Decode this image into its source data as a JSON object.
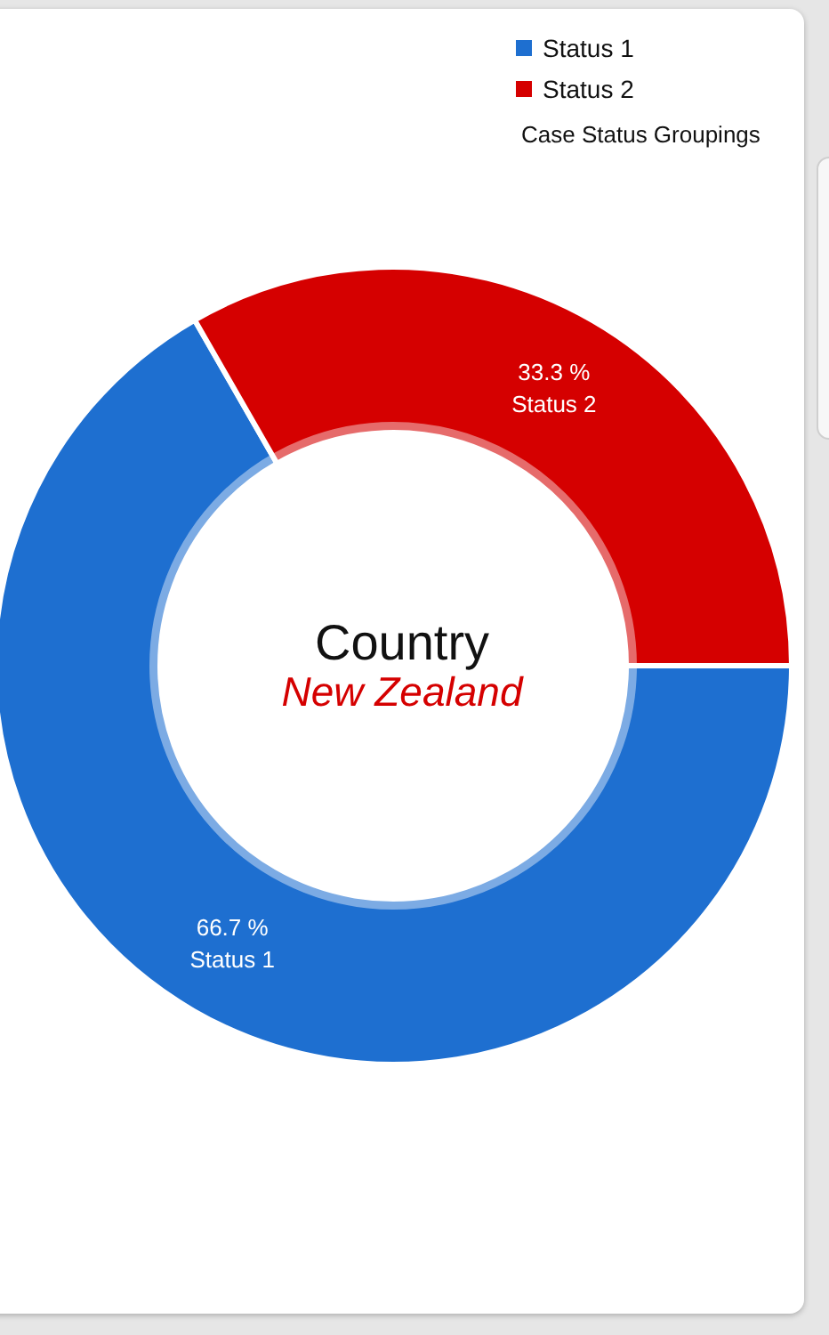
{
  "chart_data": {
    "type": "donut",
    "title": "Country",
    "subtitle": "New Zealand",
    "legend_title": "Case Status Groupings",
    "categories": [
      "Status 1",
      "Status 2"
    ],
    "values": [
      66.7,
      33.3
    ],
    "colors": [
      "#1e6fd0",
      "#d50000"
    ],
    "value_labels": [
      "66.7 %",
      "33.3 %"
    ],
    "legend": "top right"
  }
}
